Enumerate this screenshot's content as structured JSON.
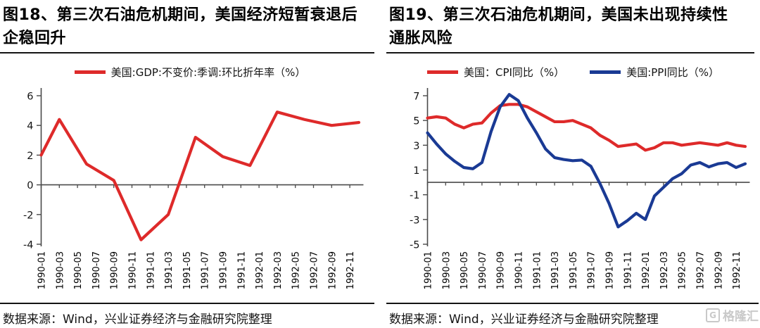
{
  "figures": [
    {
      "title": "图18、第三次石油危机期间，美国经济短暂衰退后企稳回升",
      "source": "数据来源：Wind，兴业证券经济与金融研究院整理"
    },
    {
      "title": "图19、第三次石油危机期间，美国未出现持续性通胀风险",
      "source": "数据来源：Wind，兴业证券经济与金融研究院整理",
      "watermark": "格隆汇",
      "watermark_logo_letter": "G"
    }
  ],
  "chart_data": [
    {
      "type": "line",
      "title": "图18、第三次石油危机期间，美国经济短暂衰退后企稳回升",
      "legend_position": "top",
      "grid": false,
      "x_tick_labels": [
        "1990-01",
        "1990-03",
        "1990-05",
        "1990-07",
        "1990-09",
        "1990-11",
        "1991-01",
        "1991-03",
        "1991-05",
        "1991-07",
        "1991-09",
        "1991-11",
        "1992-01",
        "1992-03",
        "1992-05",
        "1992-07",
        "1992-09",
        "1992-11"
      ],
      "ylim": [
        -4,
        6
      ],
      "yticks": [
        -4,
        -2,
        0,
        2,
        4,
        6
      ],
      "series": [
        {
          "name": "美国:GDP:不变价:季调:环比折年率（%）",
          "id": "gdp-line",
          "color": "#de2a2a",
          "x_month": [
            0,
            2,
            5,
            8,
            11,
            14,
            17,
            20,
            23,
            26,
            29,
            32,
            35
          ],
          "x_dates": [
            "1990-01",
            "1990-03",
            "1990-06",
            "1990-09",
            "1990-12",
            "1991-03",
            "1991-06",
            "1991-09",
            "1991-12",
            "1992-03",
            "1992-06",
            "1992-09",
            "1992-12"
          ],
          "values": [
            2.0,
            4.4,
            1.4,
            0.3,
            -3.7,
            -2.0,
            3.2,
            1.9,
            1.3,
            4.9,
            4.4,
            4.0,
            4.2
          ]
        }
      ]
    },
    {
      "type": "line",
      "title": "图19、第三次石油危机期间，美国未出现持续性通胀风险",
      "legend_position": "top",
      "grid": false,
      "x_start": "1990-01",
      "x_freq": "monthly",
      "x_tick_labels": [
        "1990-01",
        "1990-03",
        "1990-05",
        "1990-07",
        "1990-09",
        "1990-11",
        "1991-01",
        "1991-03",
        "1991-05",
        "1991-07",
        "1991-09",
        "1991-11",
        "1992-01",
        "1992-03",
        "1992-05",
        "1992-07",
        "1992-09",
        "1992-11"
      ],
      "ylim": [
        -5,
        7
      ],
      "yticks": [
        -5,
        -3,
        -1,
        1,
        3,
        5,
        7
      ],
      "series": [
        {
          "name": "美国：CPI同比（%）",
          "id": "cpi-line",
          "color": "#de2a2a",
          "values": [
            5.2,
            5.3,
            5.2,
            4.7,
            4.4,
            4.7,
            4.8,
            5.6,
            6.2,
            6.3,
            6.3,
            6.1,
            5.7,
            5.3,
            4.9,
            4.9,
            5.0,
            4.7,
            4.4,
            3.8,
            3.4,
            2.9,
            3.0,
            3.1,
            2.6,
            2.8,
            3.2,
            3.2,
            3.0,
            3.1,
            3.2,
            3.1,
            3.0,
            3.2,
            3.0,
            2.9
          ]
        },
        {
          "name": "美国:PPI同比（%）",
          "id": "ppi-line",
          "color": "#1a3a94",
          "values": [
            4.0,
            3.1,
            2.3,
            1.7,
            1.2,
            1.1,
            1.6,
            4.1,
            6.1,
            7.1,
            6.6,
            5.2,
            4.0,
            2.7,
            2.0,
            1.85,
            1.75,
            1.8,
            1.3,
            -0.1,
            -1.7,
            -3.6,
            -3.1,
            -2.5,
            -3.0,
            -1.1,
            -0.4,
            0.3,
            0.7,
            1.4,
            1.6,
            1.25,
            1.5,
            1.6,
            1.2,
            1.5
          ]
        }
      ]
    }
  ]
}
